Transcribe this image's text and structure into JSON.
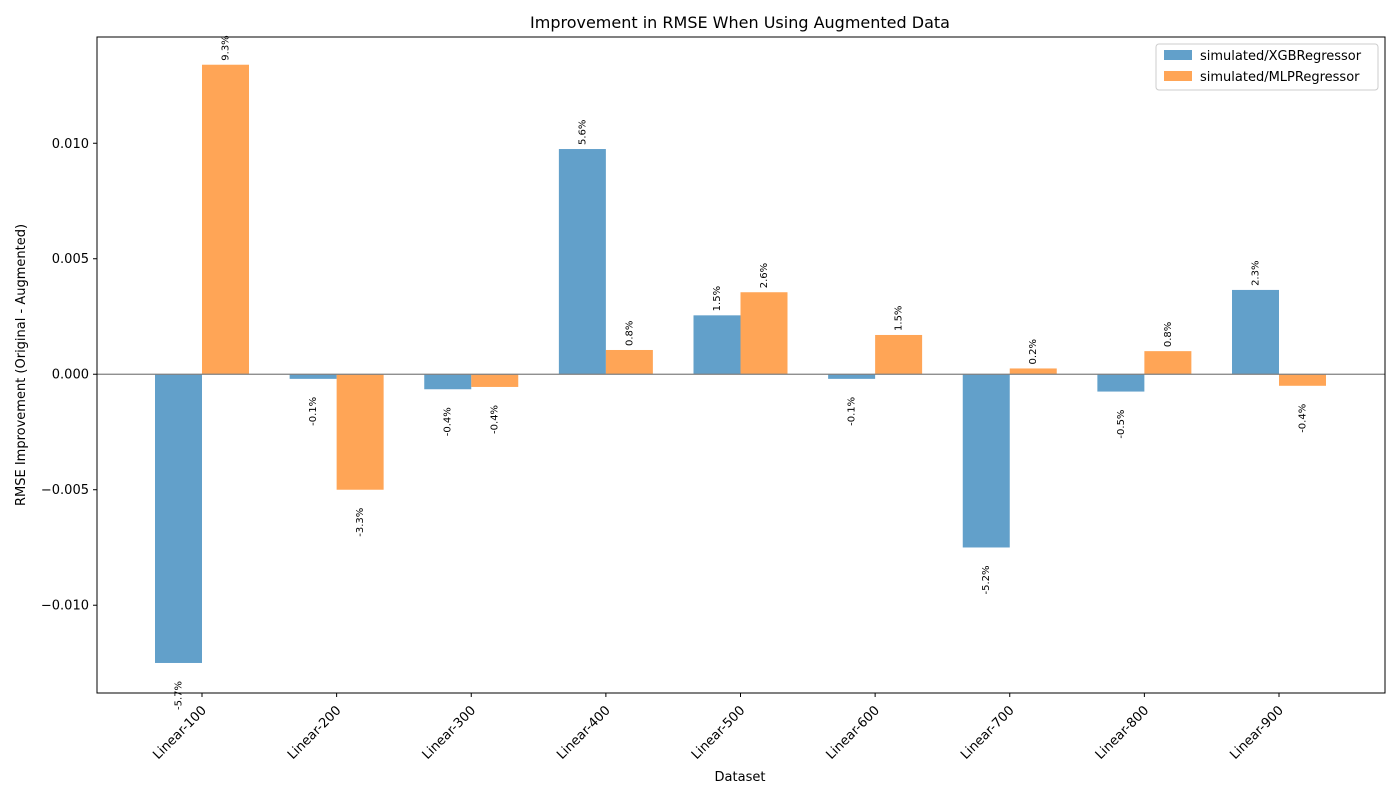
{
  "chart_data": {
    "type": "bar",
    "title": "Improvement in RMSE When Using Augmented Data",
    "xlabel": "Dataset",
    "ylabel": "RMSE Improvement (Original - Augmented)",
    "categories": [
      "Linear-100",
      "Linear-200",
      "Linear-300",
      "Linear-400",
      "Linear-500",
      "Linear-600",
      "Linear-700",
      "Linear-800",
      "Linear-900"
    ],
    "series": [
      {
        "name": "simulated/XGBRegressor",
        "color": "#1f77b4",
        "values": [
          -0.0125,
          -0.0002,
          -0.00065,
          0.00975,
          0.00255,
          -0.0002,
          -0.0075,
          -0.00075,
          0.00365
        ],
        "labels": [
          "-5.7%",
          "-0.1%",
          "-0.4%",
          "5.6%",
          "1.5%",
          "-0.1%",
          "-5.2%",
          "-0.5%",
          "2.3%"
        ]
      },
      {
        "name": "simulated/MLPRegressor",
        "color": "#ff7f0e",
        "values": [
          0.0134,
          -0.005,
          -0.00055,
          0.00105,
          0.00355,
          0.0017,
          0.00025,
          0.001,
          -0.0005
        ],
        "labels": [
          "9.3%",
          "-3.3%",
          "-0.4%",
          "0.8%",
          "2.6%",
          "1.5%",
          "0.2%",
          "0.8%",
          "-0.4%"
        ]
      }
    ],
    "ylim": [
      -0.0138,
      0.0146
    ],
    "yticks": [
      -0.01,
      -0.005,
      0.0,
      0.005,
      0.01
    ],
    "ytick_labels": [
      "−0.010",
      "−0.005",
      "0.000",
      "0.005",
      "0.010"
    ],
    "grid": false,
    "zero_line": true,
    "bar_opacity": 0.7,
    "legend_position": "top-right"
  }
}
